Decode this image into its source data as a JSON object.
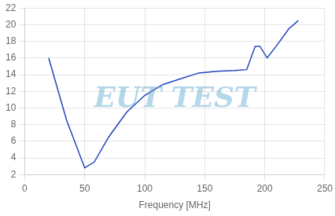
{
  "chart_data": {
    "type": "line",
    "xlabel": "Frequency [MHz]",
    "x": [
      20,
      35,
      50,
      58,
      70,
      85,
      100,
      115,
      130,
      145,
      160,
      175,
      185,
      192,
      196,
      202,
      210,
      220,
      228
    ],
    "values": [
      16.0,
      8.5,
      2.8,
      3.5,
      6.5,
      9.5,
      11.5,
      12.8,
      13.5,
      14.2,
      14.4,
      14.5,
      14.6,
      17.4,
      17.4,
      16.0,
      17.5,
      19.5,
      20.5
    ],
    "color": "#2244bb",
    "xlim": [
      0,
      250
    ],
    "ylim": [
      2,
      22
    ],
    "xticks": [
      0,
      50,
      100,
      150,
      200,
      250
    ],
    "yticks": [
      2,
      4,
      6,
      8,
      10,
      12,
      14,
      16,
      18,
      20,
      22
    ],
    "grid": true,
    "annotations": [
      "EUT TEST"
    ]
  }
}
